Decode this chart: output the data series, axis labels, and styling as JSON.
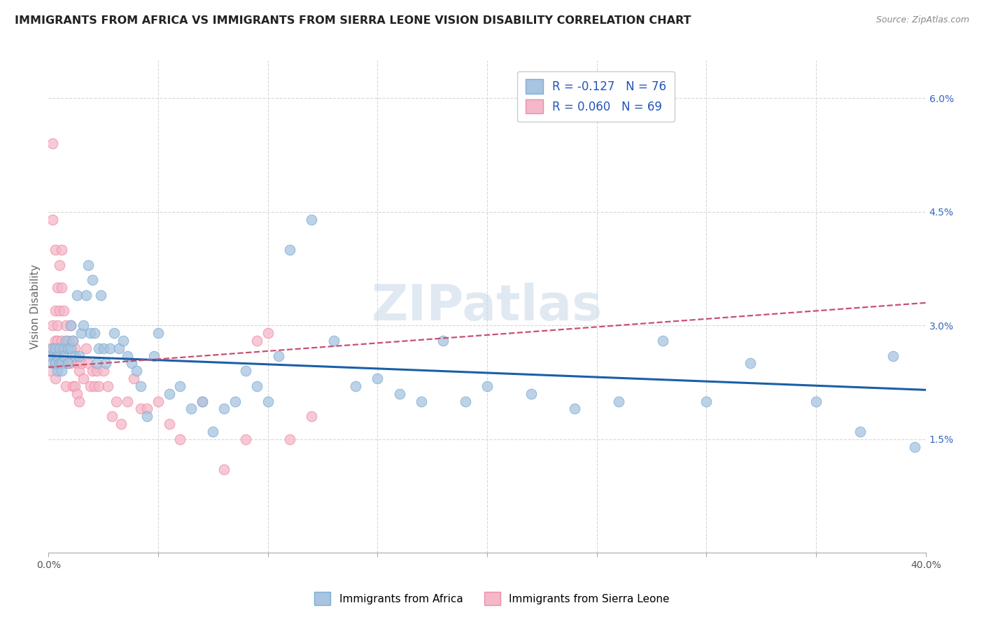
{
  "title": "IMMIGRANTS FROM AFRICA VS IMMIGRANTS FROM SIERRA LEONE VISION DISABILITY CORRELATION CHART",
  "source": "Source: ZipAtlas.com",
  "ylabel": "Vision Disability",
  "xlim": [
    0.0,
    0.4
  ],
  "ylim": [
    0.0,
    0.065
  ],
  "xticks": [
    0.0,
    0.05,
    0.1,
    0.15,
    0.2,
    0.25,
    0.3,
    0.35,
    0.4
  ],
  "xticklabels": [
    "0.0%",
    "",
    "",
    "",
    "",
    "",
    "",
    "",
    "40.0%"
  ],
  "yticks_right": [
    0.0,
    0.015,
    0.03,
    0.045,
    0.06
  ],
  "ytick_labels_right": [
    "",
    "1.5%",
    "3.0%",
    "4.5%",
    "6.0%"
  ],
  "africa_x": [
    0.001,
    0.002,
    0.002,
    0.003,
    0.003,
    0.004,
    0.004,
    0.005,
    0.005,
    0.006,
    0.006,
    0.007,
    0.007,
    0.008,
    0.009,
    0.009,
    0.01,
    0.01,
    0.011,
    0.012,
    0.013,
    0.014,
    0.015,
    0.016,
    0.017,
    0.018,
    0.019,
    0.02,
    0.021,
    0.022,
    0.023,
    0.024,
    0.025,
    0.026,
    0.028,
    0.03,
    0.032,
    0.034,
    0.036,
    0.038,
    0.04,
    0.042,
    0.045,
    0.048,
    0.05,
    0.055,
    0.06,
    0.065,
    0.07,
    0.075,
    0.08,
    0.085,
    0.09,
    0.095,
    0.1,
    0.105,
    0.11,
    0.12,
    0.13,
    0.14,
    0.15,
    0.16,
    0.17,
    0.18,
    0.19,
    0.2,
    0.22,
    0.24,
    0.26,
    0.28,
    0.3,
    0.32,
    0.35,
    0.37,
    0.385,
    0.395
  ],
  "africa_y": [
    0.026,
    0.025,
    0.027,
    0.025,
    0.027,
    0.026,
    0.024,
    0.027,
    0.025,
    0.025,
    0.024,
    0.027,
    0.026,
    0.028,
    0.027,
    0.025,
    0.027,
    0.03,
    0.028,
    0.026,
    0.034,
    0.026,
    0.029,
    0.03,
    0.034,
    0.038,
    0.029,
    0.036,
    0.029,
    0.025,
    0.027,
    0.034,
    0.027,
    0.025,
    0.027,
    0.029,
    0.027,
    0.028,
    0.026,
    0.025,
    0.024,
    0.022,
    0.018,
    0.026,
    0.029,
    0.021,
    0.022,
    0.019,
    0.02,
    0.016,
    0.019,
    0.02,
    0.024,
    0.022,
    0.02,
    0.026,
    0.04,
    0.044,
    0.028,
    0.022,
    0.023,
    0.021,
    0.02,
    0.028,
    0.02,
    0.022,
    0.021,
    0.019,
    0.02,
    0.028,
    0.02,
    0.025,
    0.02,
    0.016,
    0.026,
    0.014
  ],
  "sl_x": [
    0.001,
    0.001,
    0.001,
    0.002,
    0.002,
    0.002,
    0.002,
    0.003,
    0.003,
    0.003,
    0.003,
    0.003,
    0.004,
    0.004,
    0.004,
    0.004,
    0.005,
    0.005,
    0.005,
    0.006,
    0.006,
    0.006,
    0.006,
    0.007,
    0.007,
    0.007,
    0.008,
    0.008,
    0.008,
    0.009,
    0.009,
    0.01,
    0.01,
    0.011,
    0.011,
    0.012,
    0.012,
    0.013,
    0.013,
    0.014,
    0.014,
    0.015,
    0.016,
    0.017,
    0.018,
    0.019,
    0.02,
    0.021,
    0.022,
    0.023,
    0.025,
    0.027,
    0.029,
    0.031,
    0.033,
    0.036,
    0.039,
    0.042,
    0.045,
    0.05,
    0.055,
    0.06,
    0.07,
    0.08,
    0.09,
    0.095,
    0.1,
    0.11,
    0.12
  ],
  "sl_y": [
    0.026,
    0.024,
    0.027,
    0.054,
    0.044,
    0.03,
    0.027,
    0.04,
    0.032,
    0.028,
    0.025,
    0.023,
    0.035,
    0.03,
    0.028,
    0.025,
    0.038,
    0.032,
    0.027,
    0.04,
    0.035,
    0.028,
    0.025,
    0.032,
    0.027,
    0.025,
    0.03,
    0.027,
    0.022,
    0.028,
    0.025,
    0.03,
    0.025,
    0.028,
    0.022,
    0.027,
    0.022,
    0.025,
    0.021,
    0.024,
    0.02,
    0.025,
    0.023,
    0.027,
    0.025,
    0.022,
    0.024,
    0.022,
    0.024,
    0.022,
    0.024,
    0.022,
    0.018,
    0.02,
    0.017,
    0.02,
    0.023,
    0.019,
    0.019,
    0.02,
    0.017,
    0.015,
    0.02,
    0.011,
    0.015,
    0.028,
    0.029,
    0.015,
    0.018
  ],
  "africa_trend": [
    0.026,
    0.0215
  ],
  "sl_trend": [
    0.0245,
    0.033
  ],
  "africa_color": "#a8c4e0",
  "africa_edge": "#7bafd4",
  "sl_color": "#f4b8c8",
  "sl_edge": "#f08ca8",
  "trend_blue": "#1a5fa8",
  "trend_pink": "#c85070",
  "background_color": "#ffffff",
  "grid_color": "#d8d8d8",
  "title_color": "#222222",
  "axis_label_color": "#666666",
  "watermark": "ZIPatlas",
  "legend_labels": [
    "R = -0.127   N = 76",
    "R = 0.060   N = 69"
  ]
}
